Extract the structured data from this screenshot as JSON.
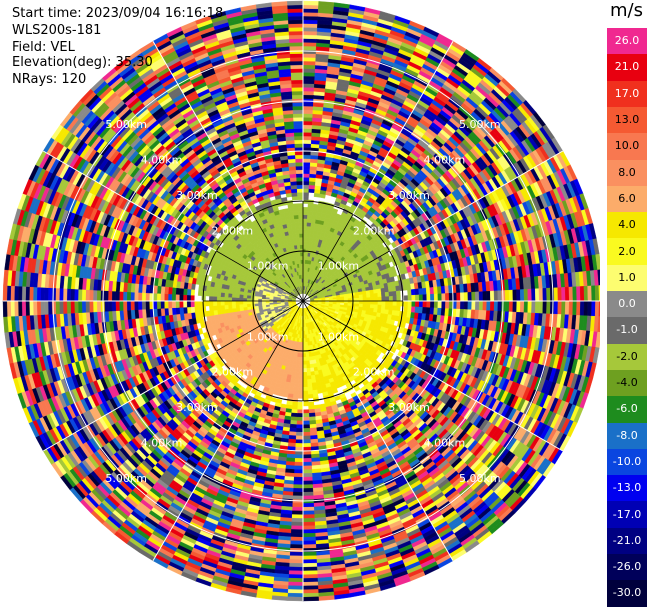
{
  "info": {
    "start_time": "Start time: 2023/09/04 16:16:18",
    "instrument": "WLS200s-181",
    "field": "Field: VEL",
    "elevation": "Elevation(deg): 35.30",
    "nrays": "NRays: 120"
  },
  "colorbar": {
    "unit": "m/s",
    "bins": [
      {
        "label": "26.0",
        "color": "#f02890"
      },
      {
        "label": "21.0",
        "color": "#e80010"
      },
      {
        "label": "17.0",
        "color": "#f0301e"
      },
      {
        "label": "13.0",
        "color": "#f55a32"
      },
      {
        "label": "10.0",
        "color": "#f87850"
      },
      {
        "label": "8.0",
        "color": "#fa9060"
      },
      {
        "label": "6.0",
        "color": "#fcac6a"
      },
      {
        "label": "4.0",
        "color": "#f6e800"
      },
      {
        "label": "2.0",
        "color": "#fafa20"
      },
      {
        "label": "1.0",
        "color": "#fdfd70"
      },
      {
        "label": "0.0",
        "color": "#8a8a8a"
      },
      {
        "label": "-1.0",
        "color": "#6a6a6a"
      },
      {
        "label": "-2.0",
        "color": "#a6c83a"
      },
      {
        "label": "-4.0",
        "color": "#6ea020"
      },
      {
        "label": "-6.0",
        "color": "#1e8c1e"
      },
      {
        "label": "-8.0",
        "color": "#1a70c8"
      },
      {
        "label": "-10.0",
        "color": "#0a46e0"
      },
      {
        "label": "-13.0",
        "color": "#0000f0"
      },
      {
        "label": "-17.0",
        "color": "#0000b4"
      },
      {
        "label": "-21.0",
        "color": "#000082"
      },
      {
        "label": "-26.0",
        "color": "#00005a"
      },
      {
        "label": "-30.0",
        "color": "#00003c"
      }
    ]
  },
  "chart_data": {
    "type": "heatmap",
    "projection": "polar",
    "field": "VEL",
    "unit": "m/s",
    "n_rays": 120,
    "elevation_deg": 35.3,
    "range_rings_km": [
      1.0,
      2.0,
      3.0,
      4.0,
      5.0
    ],
    "range_ring_labels": [
      "1.00km",
      "2.00km",
      "3.00km",
      "4.00km",
      "5.00km"
    ],
    "spoke_angles_deg": [
      0,
      30,
      60,
      90,
      120,
      150,
      180,
      210,
      240,
      270,
      300,
      330
    ],
    "max_range_km": 6.0,
    "clean_data_max_range_km": 2.2,
    "regions": [
      {
        "sector": "north",
        "azimuth_deg": [
          290,
          70
        ],
        "range_km": [
          0.3,
          2.0
        ],
        "velocity_ms": -3.0
      },
      {
        "sector": "southeast",
        "azimuth_deg": [
          80,
          200
        ],
        "range_km": [
          0.2,
          1.6
        ],
        "velocity_ms": 2.0
      },
      {
        "sector": "south",
        "azimuth_deg": [
          180,
          260
        ],
        "range_km": [
          0.8,
          2.0
        ],
        "velocity_ms": 5.0
      },
      {
        "sector": "west",
        "azimuth_deg": [
          230,
          300
        ],
        "range_km": [
          0.3,
          1.0
        ],
        "velocity_ms": 0.0
      },
      {
        "sector": "beyond",
        "azimuth_deg": [
          0,
          360
        ],
        "range_km": [
          2.2,
          6.0
        ],
        "velocity_ms": "noise"
      }
    ]
  }
}
